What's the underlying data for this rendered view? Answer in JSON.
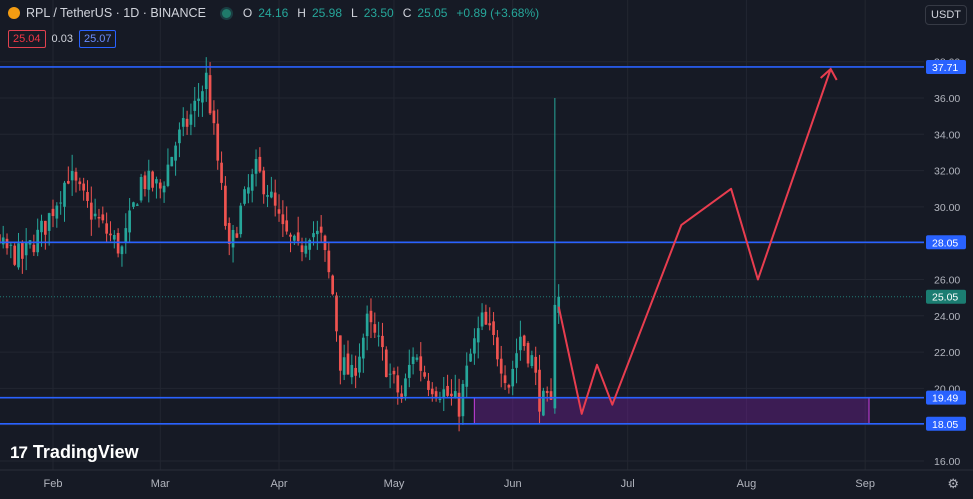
{
  "header": {
    "symbol": "RPL / TetherUS · 1D · BINANCE",
    "o_label": "O",
    "o_value": "24.16",
    "h_label": "H",
    "h_value": "25.98",
    "l_label": "L",
    "l_value": "23.50",
    "c_label": "C",
    "c_value": "25.05",
    "change": "+0.89 (+3.68%)",
    "bid": "25.04",
    "spread": "0.03",
    "ask": "25.07",
    "currency": "USDT"
  },
  "branding": {
    "logo_text": "TradingView"
  },
  "colors": {
    "bg": "#161a25",
    "grid": "#222631",
    "up": "#26a69a",
    "down": "#ef5350",
    "level": "#2962ff",
    "arrow": "#e83d4f",
    "zone": "#9c27b0"
  },
  "chart_data": {
    "type": "candlestick",
    "pair": "RPL/USDT",
    "interval": "1D",
    "ylim": [
      16,
      38.5
    ],
    "y_ticks": [
      16,
      18,
      20,
      22,
      24,
      26,
      28,
      30,
      32,
      34,
      36,
      38
    ],
    "y_tick_labels": [
      "16.00",
      "18.00",
      "20.00",
      "22.00",
      "24.00",
      "26.00",
      "28.00",
      "30.00",
      "32.00",
      "34.00",
      "36.00",
      "38.00"
    ],
    "x_labels": [
      "Feb",
      "Mar",
      "Apr",
      "May",
      "Jun",
      "Jul",
      "Aug",
      "Sep"
    ],
    "x_label_dates": [
      "2023-02-01",
      "2023-03-01",
      "2023-04-01",
      "2023-05-01",
      "2023-06-01",
      "2023-07-01",
      "2023-08-01",
      "2023-09-01"
    ],
    "close_path": [
      [
        "2023-01-01",
        29.5
      ],
      [
        "2023-01-06",
        30.5
      ],
      [
        "2023-01-12",
        28.5
      ],
      [
        "2023-01-18",
        27.8
      ],
      [
        "2023-01-24",
        27.2
      ],
      [
        "2023-01-30",
        29.0
      ],
      [
        "2023-02-05",
        31.8
      ],
      [
        "2023-02-10",
        30.0
      ],
      [
        "2023-02-15",
        28.6
      ],
      [
        "2023-02-19",
        27.6
      ],
      [
        "2023-02-24",
        31.5
      ],
      [
        "2023-03-01",
        31.0
      ],
      [
        "2023-03-05",
        33.5
      ],
      [
        "2023-03-09",
        35.0
      ],
      [
        "2023-03-13",
        37.1
      ],
      [
        "2023-03-16",
        32.5
      ],
      [
        "2023-03-19",
        27.4
      ],
      [
        "2023-03-22",
        29.8
      ],
      [
        "2023-03-26",
        32.0
      ],
      [
        "2023-03-29",
        31.0
      ],
      [
        "2023-04-02",
        28.6
      ],
      [
        "2023-04-06",
        27.5
      ],
      [
        "2023-04-09",
        28.8
      ],
      [
        "2023-04-12",
        28.2
      ],
      [
        "2023-04-15",
        25.2
      ],
      [
        "2023-04-17",
        21.5
      ],
      [
        "2023-04-20",
        20.6
      ],
      [
        "2023-04-24",
        23.6
      ],
      [
        "2023-04-27",
        22.4
      ],
      [
        "2023-04-30",
        20.7
      ],
      [
        "2023-05-03",
        19.4
      ],
      [
        "2023-05-06",
        22.0
      ],
      [
        "2023-05-10",
        20.4
      ],
      [
        "2023-05-14",
        19.8
      ],
      [
        "2023-05-18",
        19.0
      ],
      [
        "2023-05-21",
        21.8
      ],
      [
        "2023-05-24",
        23.7
      ],
      [
        "2023-05-27",
        22.6
      ],
      [
        "2023-05-31",
        20.3
      ],
      [
        "2023-06-03",
        22.9
      ],
      [
        "2023-06-06",
        21.6
      ],
      [
        "2023-06-08",
        19.4
      ],
      [
        "2023-06-11",
        18.9
      ],
      [
        "2023-06-13",
        25.05
      ]
    ],
    "last_price": 25.05,
    "spike_high": 36.0,
    "horizontal_levels": [
      37.71,
      28.05,
      19.49,
      18.05
    ],
    "level_labels": [
      "37.71",
      "28.05",
      "19.49",
      "18.05"
    ],
    "current_price_label": "25.05",
    "demand_zone": {
      "from": 18.05,
      "to": 19.49,
      "start": "2023-05-22",
      "end": "2023-09-02"
    },
    "projection_path": [
      [
        "2023-06-13",
        24.5
      ],
      [
        "2023-06-19",
        18.6
      ],
      [
        "2023-06-23",
        21.3
      ],
      [
        "2023-06-27",
        19.1
      ],
      [
        "2023-07-15",
        29.0
      ],
      [
        "2023-07-28",
        31.0
      ],
      [
        "2023-08-07",
        26.0
      ],
      [
        "2023-08-04",
        26.0
      ],
      [
        "2023-08-23",
        37.6
      ]
    ]
  }
}
